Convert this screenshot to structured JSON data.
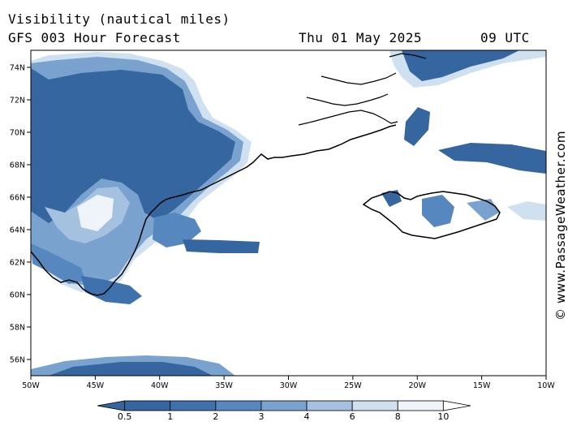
{
  "header": {
    "title": "Visibility (nautical miles)",
    "subtitle": "GFS 003 Hour Forecast",
    "date": "Thu 01 May 2025",
    "time": "09 UTC"
  },
  "credit": "© www.PassageWeather.com",
  "map": {
    "lon_ticks": [
      "50W",
      "45W",
      "40W",
      "35W",
      "30W",
      "25W",
      "20W",
      "15W",
      "10W"
    ],
    "lat_ticks": [
      "74N",
      "72N",
      "70N",
      "68N",
      "66N",
      "64N",
      "62N",
      "60N",
      "58N",
      "56N"
    ]
  },
  "legend": {
    "labels": [
      "0.5",
      "1",
      "2",
      "3",
      "4",
      "6",
      "8",
      "10"
    ],
    "colors": [
      "#35669f",
      "#3f72ad",
      "#5688bf",
      "#7aa2cf",
      "#a4c2e0",
      "#cfe0f0",
      "#eef4fa",
      "#ffffff"
    ]
  },
  "colors": {
    "low_visibility": "#35669f",
    "mid_visibility": "#7aa2cf",
    "high_visibility": "#ffffff"
  }
}
